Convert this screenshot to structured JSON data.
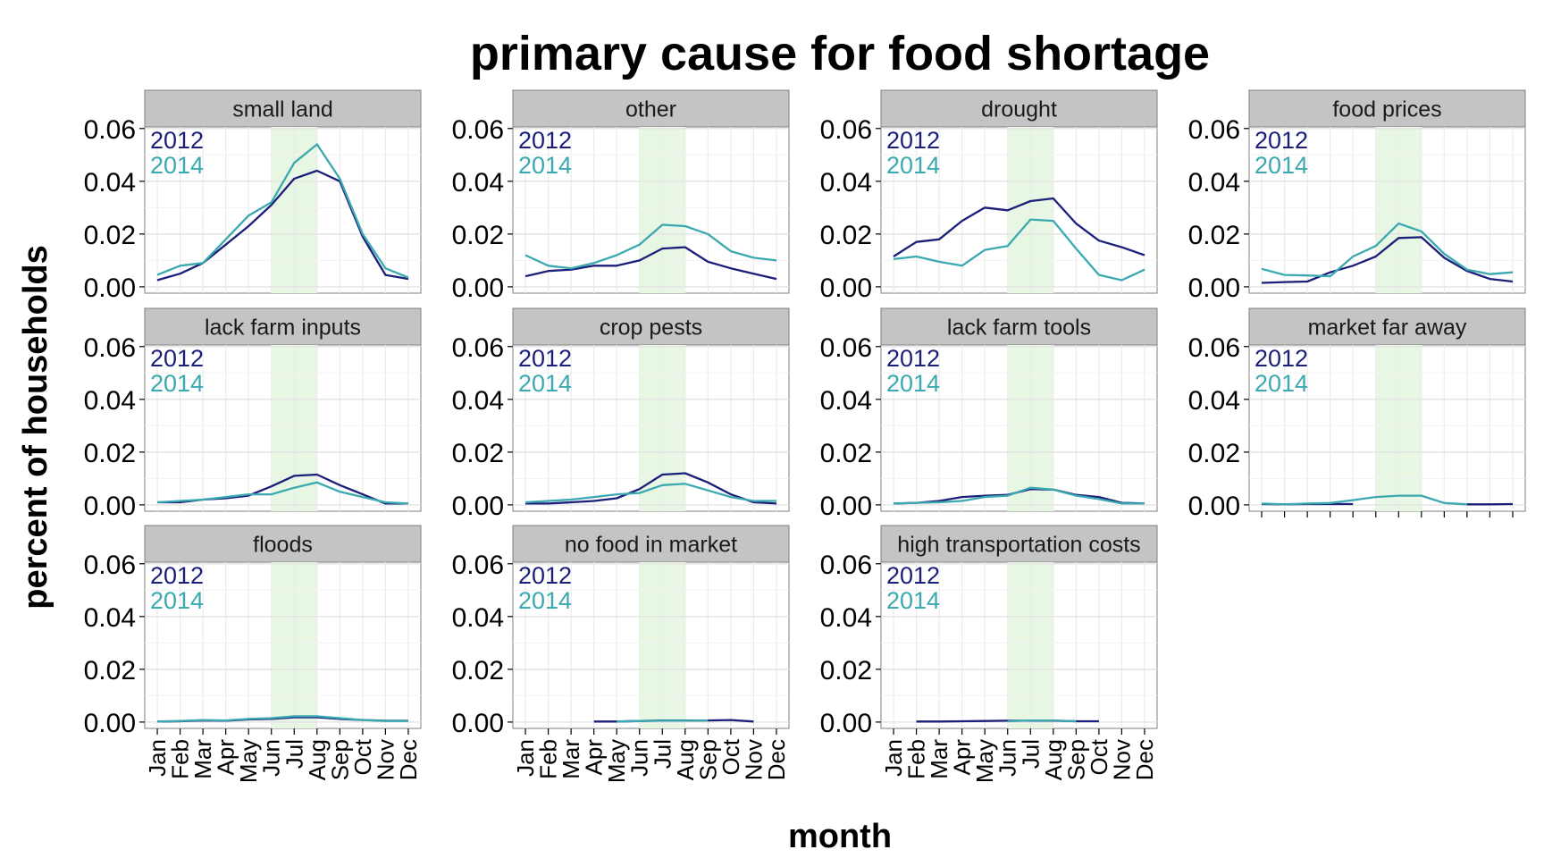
{
  "chart_data": {
    "type": "line",
    "title": "primary cause for food shortage",
    "xlabel": "month",
    "ylabel": "percent of households",
    "months": [
      "Jan",
      "Feb",
      "Mar",
      "Apr",
      "May",
      "Jun",
      "Jul",
      "Aug",
      "Sep",
      "Oct",
      "Nov",
      "Dec"
    ],
    "yticks": [
      "0.00",
      "0.02",
      "0.04",
      "0.06"
    ],
    "ylim": [
      0,
      0.06
    ],
    "shaded_months": [
      "Jun",
      "Aug"
    ],
    "colors": {
      "2012": "#1b1f7a",
      "2014": "#3aa9b0",
      "shade": "#e8f7e3",
      "strip": "#c4c4c4"
    },
    "legend": [
      "2012",
      "2014"
    ],
    "grid": true,
    "panels": [
      {
        "name": "small land",
        "series": [
          {
            "name": "2012",
            "values": [
              0.0025,
              0.005,
              0.009,
              0.016,
              0.023,
              0.031,
              0.041,
              0.044,
              0.04,
              0.019,
              0.0045,
              0.003
            ]
          },
          {
            "name": "2014",
            "values": [
              0.0045,
              0.008,
              0.009,
              0.018,
              0.027,
              0.032,
              0.047,
              0.054,
              0.041,
              0.02,
              0.007,
              0.0035
            ]
          }
        ]
      },
      {
        "name": "other",
        "series": [
          {
            "name": "2012",
            "values": [
              0.004,
              0.006,
              0.0065,
              0.008,
              0.008,
              0.01,
              0.0145,
              0.015,
              0.0095,
              0.007,
              0.005,
              0.003
            ]
          },
          {
            "name": "2014",
            "values": [
              0.012,
              0.008,
              0.007,
              0.009,
              0.012,
              0.016,
              0.0235,
              0.023,
              0.02,
              0.0135,
              0.011,
              0.01
            ]
          }
        ]
      },
      {
        "name": "drought",
        "series": [
          {
            "name": "2012",
            "values": [
              0.0115,
              0.017,
              0.018,
              0.025,
              0.03,
              0.029,
              0.0325,
              0.0335,
              0.024,
              0.0175,
              0.015,
              0.012
            ]
          },
          {
            "name": "2014",
            "values": [
              0.0105,
              0.0115,
              0.0095,
              0.008,
              0.014,
              0.0155,
              0.0255,
              0.025,
              0.0145,
              0.0045,
              0.0025,
              0.0065
            ]
          }
        ]
      },
      {
        "name": "food prices",
        "series": [
          {
            "name": "2012",
            "values": [
              0.0015,
              0.0018,
              0.002,
              0.0055,
              0.008,
              0.0115,
              0.0185,
              0.0188,
              0.011,
              0.006,
              0.003,
              0.002
            ]
          },
          {
            "name": "2014",
            "values": [
              0.0068,
              0.0045,
              0.0043,
              0.004,
              0.0115,
              0.0155,
              0.024,
              0.021,
              0.0125,
              0.0065,
              0.0048,
              0.0055
            ]
          }
        ]
      },
      {
        "name": "lack farm inputs",
        "series": [
          {
            "name": "2012",
            "values": [
              0.001,
              0.001,
              0.002,
              0.0025,
              0.0035,
              0.007,
              0.011,
              0.0115,
              0.0075,
              0.004,
              0.0005,
              0.0005
            ]
          },
          {
            "name": "2014",
            "values": [
              0.001,
              0.0015,
              0.002,
              0.003,
              0.004,
              0.004,
              0.0065,
              0.0085,
              0.005,
              0.003,
              0.001,
              0.0005
            ]
          }
        ]
      },
      {
        "name": "crop pests",
        "series": [
          {
            "name": "2012",
            "values": [
              0.0005,
              0.0005,
              0.001,
              0.0015,
              0.0025,
              0.006,
              0.0115,
              0.012,
              0.0085,
              0.004,
              0.001,
              0.0005
            ]
          },
          {
            "name": "2014",
            "values": [
              0.001,
              0.0015,
              0.002,
              0.003,
              0.004,
              0.0045,
              0.0075,
              0.008,
              0.0055,
              0.003,
              0.0015,
              0.0015
            ]
          }
        ]
      },
      {
        "name": "lack farm tools",
        "series": [
          {
            "name": "2012",
            "values": [
              0.0005,
              0.0008,
              0.0015,
              0.003,
              0.0035,
              0.0038,
              0.006,
              0.0058,
              0.0038,
              0.003,
              0.0008,
              0.0005
            ]
          },
          {
            "name": "2014",
            "values": [
              0.0005,
              0.0008,
              0.001,
              0.0015,
              0.003,
              0.0035,
              0.0065,
              0.0058,
              0.0035,
              0.0022,
              0.0005,
              0.0005
            ]
          }
        ]
      },
      {
        "name": "market far away",
        "series": [
          {
            "name": "2012",
            "values": [
              0.0003,
              0.0002,
              0.0003,
              0.0003,
              0.0003,
              null,
              null,
              null,
              null,
              0.0002,
              0.0002,
              0.0003
            ]
          },
          {
            "name": "2014",
            "values": [
              0.0005,
              0.0002,
              0.0005,
              0.0007,
              0.0018,
              0.003,
              0.0035,
              0.0035,
              0.0007,
              0.0002,
              null,
              null
            ]
          }
        ]
      },
      {
        "name": "floods",
        "series": [
          {
            "name": "2012",
            "values": [
              0.0002,
              0.0003,
              0.0006,
              0.0005,
              0.001,
              0.0012,
              0.0018,
              0.0018,
              0.0012,
              0.0008,
              0.0005,
              0.0005
            ]
          },
          {
            "name": "2014",
            "values": [
              0.0002,
              0.0004,
              0.0008,
              0.0006,
              0.0012,
              0.0015,
              0.0022,
              0.0022,
              0.0015,
              0.0008,
              0.0004,
              0.0004
            ]
          }
        ]
      },
      {
        "name": "no food in market",
        "series": [
          {
            "name": "2012",
            "values": [
              null,
              null,
              null,
              0.0002,
              0.0002,
              0.0004,
              0.0006,
              0.0006,
              0.0006,
              0.0008,
              0.0002,
              null
            ]
          },
          {
            "name": "2014",
            "values": [
              null,
              null,
              null,
              null,
              0.0002,
              0.0004,
              0.0005,
              0.0005,
              0.0006,
              null,
              null,
              null
            ]
          }
        ]
      },
      {
        "name": "high transportation costs",
        "series": [
          {
            "name": "2012",
            "values": [
              null,
              0.0002,
              0.0002,
              0.0003,
              0.0004,
              0.0005,
              0.0005,
              0.0005,
              0.0003,
              0.0003,
              null,
              null
            ]
          },
          {
            "name": "2014",
            "values": [
              null,
              null,
              null,
              null,
              null,
              0.0003,
              0.0006,
              0.0006,
              0.0003,
              null,
              null,
              null
            ]
          }
        ]
      }
    ]
  }
}
